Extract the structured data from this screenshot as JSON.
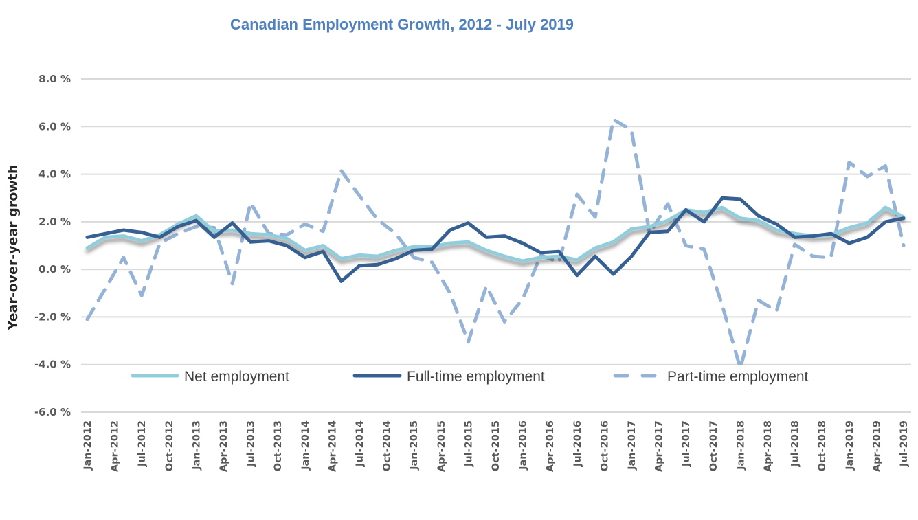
{
  "chart_data": {
    "type": "line",
    "title": "Canadian Employment Growth, 2012 - July 2019",
    "xlabel": "",
    "ylabel": "Year-over-year growth",
    "ylim": [
      -6,
      8
    ],
    "yticks": [
      8,
      6,
      4,
      2,
      0,
      -2,
      -4,
      -6
    ],
    "ytick_labels": [
      "8.0 %",
      "6.0 %",
      "4.0 %",
      "2.0 %",
      "0.0 %",
      "-2.0 %",
      "-4.0 %",
      "-6.0 %"
    ],
    "grid": true,
    "legend_position": "bottom-inside",
    "x_start": "Jan-2012",
    "x_interval_months": 2,
    "x_tick_interval_months": 3,
    "x_tick_labels": [
      "Jan-2012",
      "Apr-2012",
      "Jul-2012",
      "Oct-2012",
      "Jan-2013",
      "Apr-2013",
      "Jul-2013",
      "Oct-2013",
      "Jan-2014",
      "Apr-2014",
      "Jul-2014",
      "Oct-2014",
      "Jan-2015",
      "Apr-2015",
      "Jul-2015",
      "Oct-2015",
      "Jan-2016",
      "Apr-2016",
      "Jul-2016",
      "Oct-2016",
      "Jan-2017",
      "Apr-2017",
      "Jul-2017",
      "Oct-2017",
      "Jan-2018",
      "Apr-2018",
      "Jul-2018",
      "Oct-2018",
      "Jan-2019",
      "Apr-2019",
      "Jul-2019"
    ],
    "series": [
      {
        "name": "Net employment",
        "color": "#92cddc",
        "style": "solid",
        "values": [
          0.9,
          1.35,
          1.4,
          1.2,
          1.45,
          1.9,
          2.25,
          1.6,
          1.65,
          1.5,
          1.45,
          1.3,
          0.8,
          1.0,
          0.45,
          0.6,
          0.55,
          0.8,
          0.95,
          0.95,
          1.1,
          1.15,
          0.8,
          0.55,
          0.35,
          0.5,
          0.55,
          0.4,
          0.9,
          1.15,
          1.7,
          1.8,
          2.05,
          2.5,
          2.4,
          2.6,
          2.15,
          2.05,
          1.65,
          1.5,
          1.4,
          1.45,
          1.75,
          1.95,
          2.6,
          2.2
        ]
      },
      {
        "name": "Full-time employment",
        "color": "#366092",
        "style": "solid",
        "values": [
          1.35,
          1.5,
          1.65,
          1.55,
          1.35,
          1.8,
          2.05,
          1.35,
          1.95,
          1.15,
          1.2,
          1.0,
          0.5,
          0.75,
          -0.5,
          0.15,
          0.2,
          0.45,
          0.8,
          0.85,
          1.65,
          1.95,
          1.35,
          1.4,
          1.1,
          0.7,
          0.75,
          -0.25,
          0.55,
          -0.2,
          0.55,
          1.55,
          1.6,
          2.5,
          2.0,
          3.0,
          2.95,
          2.25,
          1.9,
          1.35,
          1.4,
          1.5,
          1.1,
          1.35,
          2.0,
          2.15
        ]
      },
      {
        "name": "Part-time employment",
        "color": "#95b3d7",
        "style": "dashed",
        "values": [
          -2.1,
          -0.8,
          0.5,
          -1.1,
          1.1,
          1.5,
          1.8,
          1.75,
          -0.6,
          2.8,
          1.5,
          1.45,
          1.9,
          1.6,
          4.15,
          3.1,
          2.1,
          1.5,
          0.5,
          0.3,
          -1.0,
          -3.05,
          -0.7,
          -2.2,
          -1.25,
          0.6,
          0.3,
          3.15,
          2.2,
          6.3,
          5.85,
          1.5,
          2.75,
          1.0,
          0.85,
          -1.5,
          -4.15,
          -1.3,
          -1.75,
          1.05,
          0.55,
          0.5,
          4.5,
          3.9,
          4.35,
          1.0
        ]
      }
    ]
  }
}
